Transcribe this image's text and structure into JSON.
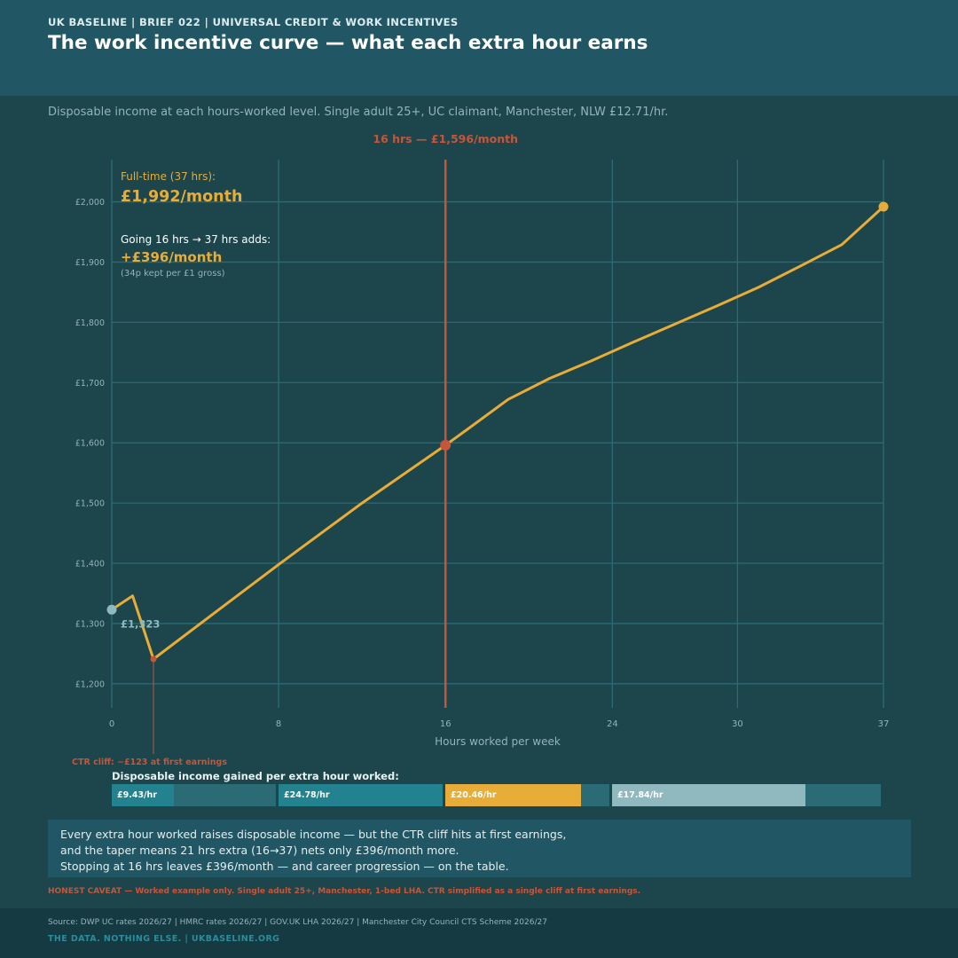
{
  "header": {
    "kicker": "UK BASELINE  |  BRIEF 022  |  UNIVERSAL CREDIT & WORK INCENTIVES",
    "title": "The work incentive curve — what each extra hour earns"
  },
  "subtitle": "Disposable income at each hours-worked level. Single adult 25+, UC claimant, Manchester, NLW £12.71/hr.",
  "chart_data": {
    "type": "line",
    "x": [
      0,
      1,
      2,
      8,
      12,
      16,
      17,
      19,
      21,
      23,
      25,
      27,
      29,
      31,
      33,
      35,
      37
    ],
    "series": [
      {
        "values": [
          1323,
          1346,
          1241,
          1398,
          1500,
          1596,
          1621,
          1672,
          1707,
          1736,
          1767,
          1797,
          1827,
          1858,
          1893,
          1929,
          1992
        ]
      }
    ],
    "xlabel": "Hours worked per week",
    "ylabel": "",
    "xlim": [
      0,
      37
    ],
    "ylim": [
      1160,
      2070
    ],
    "x_ticks": [
      0,
      8,
      16,
      24,
      30,
      37
    ],
    "x_tick_labels": [
      "0",
      "8",
      "16",
      "24",
      "30",
      "37"
    ],
    "y_ticks": [
      1200,
      1300,
      1400,
      1500,
      1600,
      1700,
      1800,
      1900,
      2000
    ],
    "y_tick_labels": [
      "£1,200",
      "£1,300",
      "£1,400",
      "£1,500",
      "£1,600",
      "£1,700",
      "£1,800",
      "£1,900",
      "£2,000"
    ],
    "grid": true,
    "colors": {
      "line": "#e8ac38",
      "start_marker": "#8fb8bf",
      "end_marker": "#e8ac38",
      "highlight": "#c4563a",
      "grid": "#2b6b75",
      "tick_text": "#93b4ba"
    },
    "annotations": {
      "vline": {
        "x": 16,
        "y": 1596,
        "label": "16 hrs — £1,596/month"
      },
      "start": {
        "x": 0,
        "y": 1323,
        "label": "£1,323"
      },
      "cliff": {
        "x": 2,
        "y": 1241,
        "label": "CTR cliff: −£123 at first earnings"
      },
      "end": {
        "x": 37,
        "y": 1992
      },
      "fulltime_caption": "Full-time (37 hrs):",
      "fulltime_value": "£1,992/month",
      "adds_caption": "Going 16 hrs → 37 hrs adds:",
      "adds_value": "+£396/month",
      "adds_note": "(34p kept per £1 gross)"
    }
  },
  "hourly_gain": {
    "title": "Disposable income gained per extra hour worked:",
    "bands": [
      {
        "label": "£9.43/hr",
        "value": 9.43,
        "color": "#22828f"
      },
      {
        "label": "£24.78/hr",
        "value": 24.78,
        "color": "#22828f"
      },
      {
        "label": "£20.46/hr",
        "value": 20.46,
        "color": "#e8ac38"
      },
      {
        "label": "£17.84/hr",
        "value": 17.84,
        "color": "#8fb8bf"
      }
    ]
  },
  "summary": {
    "line1": "Every extra hour worked raises disposable income — but the CTR cliff hits at first earnings,",
    "line2": "and the taper means 21 hrs extra (16→37) nets only £396/month more.",
    "line3": "Stopping at 16 hrs leaves £396/month — and career progression — on the table."
  },
  "caveat": "HONEST CAVEAT — Worked example only. Single adult 25+, Manchester, 1-bed LHA. CTR simplified as a single cliff at first earnings.",
  "footer": {
    "source": "Source: DWP UC rates 2026/27 | HMRC rates 2026/27 | GOV.UK LHA 2026/27 | Manchester City Council CTS Scheme 2026/27",
    "brand": "THE DATA. NOTHING ELSE.  |  UKBASELINE.ORG"
  }
}
